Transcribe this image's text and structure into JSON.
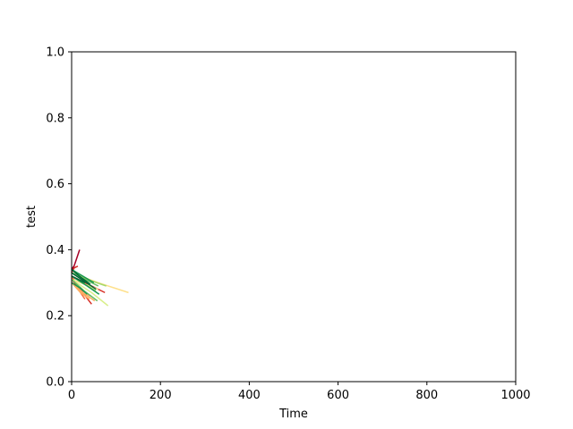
{
  "chart_data": {
    "type": "line",
    "title": "",
    "xlabel": "Time",
    "ylabel": "test",
    "xlim": [
      0,
      1000
    ],
    "ylim": [
      0.0,
      1.0
    ],
    "xticks": [
      0,
      200,
      400,
      600,
      800,
      1000
    ],
    "yticks": [
      0.0,
      0.2,
      0.4,
      0.6,
      0.8,
      1.0
    ],
    "xtick_labels": [
      "0",
      "200",
      "400",
      "600",
      "800",
      "1000"
    ],
    "ytick_labels": [
      "0.0",
      "0.2",
      "0.4",
      "0.6",
      "0.8",
      "1.0"
    ],
    "grid": false,
    "legend": "none",
    "series": [
      {
        "color": "#a50026",
        "x": [
          0,
          8,
          18
        ],
        "y": [
          0.33,
          0.36,
          0.4
        ]
      },
      {
        "color": "#d73027",
        "x": [
          0,
          6,
          14
        ],
        "y": [
          0.33,
          0.345,
          0.35
        ]
      },
      {
        "color": "#a50026",
        "x": [
          0,
          5
        ],
        "y": [
          0.34,
          0.35
        ]
      },
      {
        "color": "#d73027",
        "x": [
          0,
          30,
          75
        ],
        "y": [
          0.32,
          0.3,
          0.27
        ]
      },
      {
        "color": "#f46d43",
        "x": [
          0,
          15,
          30
        ],
        "y": [
          0.32,
          0.28,
          0.25
        ]
      },
      {
        "color": "#d73027",
        "x": [
          0,
          25,
          45
        ],
        "y": [
          0.31,
          0.27,
          0.235
        ]
      },
      {
        "color": "#f46d43",
        "x": [
          0,
          20,
          42
        ],
        "y": [
          0.32,
          0.28,
          0.26
        ]
      },
      {
        "color": "#fdae61",
        "x": [
          0,
          20,
          40
        ],
        "y": [
          0.3,
          0.27,
          0.25
        ]
      },
      {
        "color": "#fee08b",
        "x": [
          0,
          60,
          128
        ],
        "y": [
          0.33,
          0.3,
          0.27
        ]
      },
      {
        "color": "#fee08b",
        "x": [
          0,
          40,
          60
        ],
        "y": [
          0.31,
          0.29,
          0.28
        ]
      },
      {
        "color": "#fdae61",
        "x": [
          0,
          25,
          52
        ],
        "y": [
          0.3,
          0.27,
          0.245
        ]
      },
      {
        "color": "#d9ef8b",
        "x": [
          0,
          45,
          82
        ],
        "y": [
          0.31,
          0.27,
          0.23
        ]
      },
      {
        "color": "#a6d96a",
        "x": [
          0,
          35,
          78
        ],
        "y": [
          0.33,
          0.31,
          0.29
        ]
      },
      {
        "color": "#a6d96a",
        "x": [
          0,
          30,
          55
        ],
        "y": [
          0.32,
          0.295,
          0.275
        ]
      },
      {
        "color": "#66bd63",
        "x": [
          0,
          28,
          58
        ],
        "y": [
          0.31,
          0.275,
          0.245
        ]
      },
      {
        "color": "#66bd63",
        "x": [
          0,
          30,
          60
        ],
        "y": [
          0.33,
          0.31,
          0.29
        ]
      },
      {
        "color": "#1a9850",
        "x": [
          0,
          25,
          50
        ],
        "y": [
          0.34,
          0.32,
          0.3
        ]
      },
      {
        "color": "#1a9850",
        "x": [
          0,
          35,
          62
        ],
        "y": [
          0.32,
          0.29,
          0.265
        ]
      },
      {
        "color": "#006837",
        "x": [
          0,
          28,
          55
        ],
        "y": [
          0.33,
          0.305,
          0.28
        ]
      },
      {
        "color": "#006837",
        "x": [
          0,
          22,
          42
        ],
        "y": [
          0.34,
          0.315,
          0.295
        ]
      },
      {
        "color": "#1a9850",
        "x": [
          0,
          18,
          35
        ],
        "y": [
          0.3,
          0.285,
          0.265
        ]
      },
      {
        "color": "#006837",
        "x": [
          0,
          15,
          30
        ],
        "y": [
          0.32,
          0.31,
          0.3
        ]
      }
    ]
  }
}
